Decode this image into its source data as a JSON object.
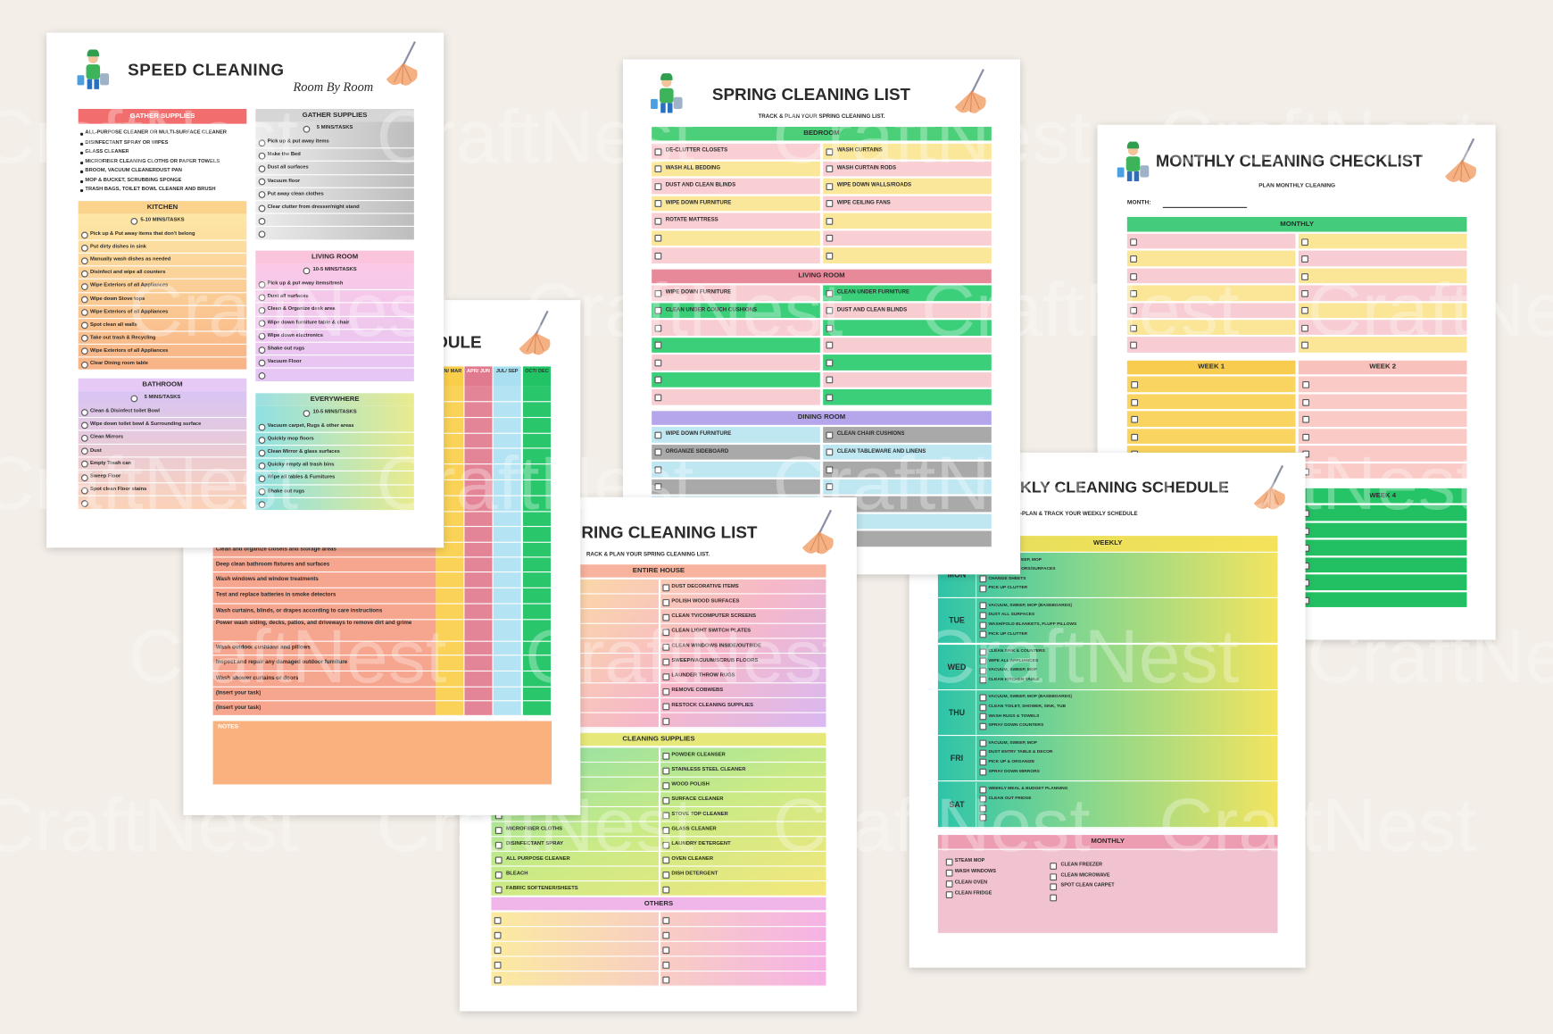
{
  "watermark": "CraftNest",
  "speed_cleaning": {
    "title": "SPEED CLEANING",
    "subtitle": "Room By Room",
    "supplies": {
      "title": "GATHER SUPPLIES",
      "items": [
        "ALL-PURPOSE CLEANER OR MULTI-SURFACE CLEANER",
        "DISINFECTANT SPRAY OR WIPES",
        "GLASS CLEANER",
        "MICROFIBER CLEANING CLOTHS OR PAPER TOWELS",
        "BROOM, VACUUM CLEANERDUST PAN",
        "MOP & BUCKET, SCRUBBING SPONGE",
        "TRASH BAGS, TOILET BOWL CLEANER AND BRUSH"
      ]
    },
    "kitchen": {
      "title": "KITCHEN",
      "note": "5-10 MINS/TASKS",
      "items": [
        "Pick up & Put away items that don't belong",
        "Put dirty dishes in sink",
        "Manually wash dishes as needed",
        "Disinfect and wipe all counters",
        "Wipe Exteriors of all Appliances",
        "Wipe down Stove tops",
        "Wipe Exteriors of all Appliances",
        "Spot clean all walls",
        "Take out trash & Recycling",
        "Wipe Exteriors of all Appliances",
        "Clear Dining room table"
      ]
    },
    "bathroom": {
      "title": "BATHROOM",
      "note": "5 MINS/TASKS",
      "items": [
        "Clean & Disinfect toilet Bowl",
        "Wipe down toilet bowl & Surrounding surface",
        "Clean Mirrors",
        "Dust",
        "Empty Trash can",
        "Sweep Floor",
        "Spot clean Floor stains"
      ]
    },
    "gather": {
      "title": "GATHER SUPPLIES",
      "note": "5 MINS/TASKS",
      "items": [
        "Pick up & put away items",
        "Make the Bed",
        "Dust all surfaces",
        "Vacuum floor",
        "Put away clean clothes",
        "Clear clutter from dresser/night stand"
      ]
    },
    "living_room": {
      "title": "LIVING ROOM",
      "note": "10-5 MINS/TASKS",
      "items": [
        "Pick up & put away items/trash",
        "Dust all surfaces",
        "Clean & Organize desk area",
        "Wipe down furniture table & chair",
        "Wipe down electronics",
        "Shake out rugs",
        "Vacuum Floor"
      ]
    },
    "everywhere": {
      "title": "EVERYWHERE",
      "note": "10-5 MINS/TASKS",
      "items": [
        "Vacuum carpet, Rugs & other areas",
        "Quickly mop floors",
        "Clean Mirror & glass surfaces",
        "Quicky empty all trash bins",
        "Wipe all tables & Furnitures",
        "Shake out rugs"
      ]
    }
  },
  "schedule": {
    "title": "DULE",
    "columns": [
      "JAN/ MAR",
      "APR/ JUN",
      "JUL/ SEP",
      "OCT/ DEC"
    ],
    "tasks": [
      "Clean and organize closets and storage areas",
      "Deep clean bathroom fixtures and surfaces",
      "Wash windows and window treatments",
      "Test and replace batteries in smoke detectors",
      "Wash curtains, blinds, or drapes according to care instructions",
      "Power wash siding, decks, patios, and driveways to remove dirt and grime",
      "Wash outdoor cushions and pillows",
      "Inspect and repair any damaged outdoor furniture",
      "Wash shower curtains or doors",
      "(Insert your task)",
      "(Insert your task)"
    ],
    "notes": "NOTES"
  },
  "spring_list": {
    "title": "SPRING CLEANING LIST",
    "subtitle": "TRACK & PLAN YOUR SPRING CLEANING LIST.",
    "bedroom": {
      "title": "BEDROOM",
      "left": [
        "DE-CLUTTER CLOSETS",
        "WASH ALL BEDDING",
        "DUST AND CLEAN BLINDS",
        "WIPE DOWN FURNITURE",
        "ROTATE MATTRESS"
      ],
      "right": [
        "WASH CURTAINS",
        "WASH CURTAIN RODS",
        "WIPE DOWN WALLS/ROADS",
        "WIPE CEILING FANS"
      ]
    },
    "living_room": {
      "title": "LIVING ROOM",
      "left": [
        "WIPE DOWN FURNITURE",
        "CLEAN UNDER COUCH CUSHIONS"
      ],
      "right": [
        "CLEAN UNDER FURNITURE",
        "DUST AND CLEAN BLINDS"
      ]
    },
    "dining_room": {
      "title": "DINING ROOM",
      "left": [
        "WIPE DOWN FURNITURE",
        "ORGANIZE SIDEBOARD"
      ],
      "right": [
        "CLEAN CHAIR CUSHIONS",
        "CLEAN TABLEWARE AND LINENS"
      ]
    }
  },
  "monthly_checklist": {
    "title": "MONTHLY CLEANING CHECKLIST",
    "subtitle": "PLAN MONTHLY CLEANING",
    "month_label": "MONTH:",
    "monthly": "MONTHLY",
    "week1": "WEEK 1",
    "week2": "WEEK 2",
    "week4": "WEEK 4"
  },
  "weekly_schedule": {
    "title": "KLY CLEANING SCHEDULE",
    "subtitle": "-PLAN & TRACK YOUR WEEKLY SCHEDULE",
    "weekly": "WEEKLY",
    "days": [
      {
        "day": "MON",
        "tasks": [
          "EEP, MOP",
          "ORS/SURFACES",
          "CHANGE SHEETS",
          "PICK UP CLUTTER"
        ]
      },
      {
        "day": "TUE",
        "tasks": [
          "VACUUM, SWEEP, MOP (BASEBOARDS)",
          "DUST ALL SURFACES",
          "WASH/FOLD BLANKETS, FLUFF PILLOWS",
          "PICK UP CLUTTER"
        ]
      },
      {
        "day": "WED",
        "tasks": [
          "CLEAN SINK & COUNTERS",
          "WIPE ALL APPLIANCES",
          "VACUUM, SWEEP, MOP",
          "CLEAN KITCHEN TABLE"
        ]
      },
      {
        "day": "THU",
        "tasks": [
          "VACUUM, SWEEP, MOP (BASEBOARDS)",
          "CLEAN TOILET, SHOWER, SINK, TUB",
          "WASH RUGS & TOWELS",
          "SPRAY DOWN COUNTERS"
        ]
      },
      {
        "day": "FRI",
        "tasks": [
          "VACUUM, SWEEP, MOP",
          "DUST ENTRY TABLE & DECOR",
          "PICK UP & ORGANIZE",
          "SPRAY DOWN MIRRORS"
        ]
      },
      {
        "day": "SAT",
        "tasks": [
          "WEEKLY MEAL & BUDGET PLANNING",
          "CLEAN OUT FRIDGE"
        ]
      }
    ],
    "monthly": {
      "title": "MONTHLY",
      "left": [
        "STEAM MOP",
        "WASH WINDOWS",
        "CLEAN OVEN",
        "CLEAN FRIDGE"
      ],
      "right": [
        "CLEAN FREEZER",
        "CLEAN MICROWAVE",
        "SPOT CLEAN CARPET"
      ]
    }
  },
  "spring_list_front": {
    "title": "RING CLEANING LIST",
    "subtitle": "RACK & PLAN YOUR SPRING CLEANING LIST.",
    "entire_house": {
      "title": "ENTIRE HOUSE",
      "right": [
        "DUST DECORATIVE ITEMS",
        "POLISH WOOD SURFACES",
        "CLEAN TV/COMPUTER SCREENS",
        "CLEAN LIGHT SWITCH PLATES",
        "CLEAN WINDOWS INSIDE/OUTSIDE",
        "SWEEP/VACUUM/SCRUB FLOORS",
        "LAUNDER THROW RUGS",
        "REMOVE COBWEBS",
        "RESTOCK CLEANING SUPPLIES"
      ]
    },
    "cleaning_supplies": {
      "title": "CLEANING SUPPLIES",
      "left": [
        "MICROFIBER CLOTHS",
        "DISINFECTANT SPRAY",
        "ALL PURPOSE CLEANER",
        "BLEACH",
        "FABRIC SOFTENER/SHEETS"
      ],
      "right": [
        "POWDER CLEANSER",
        "STAINLESS STEEL CLEANER",
        "WOOD POLISH",
        "SURFACE CLEANER",
        "STOVE TOP CLEANER",
        "GLASS CLEANER",
        "LAUNDRY DETERGENT",
        "OVEN CLEANER",
        "DISH DETERGENT"
      ]
    },
    "others": "OTHERS"
  }
}
